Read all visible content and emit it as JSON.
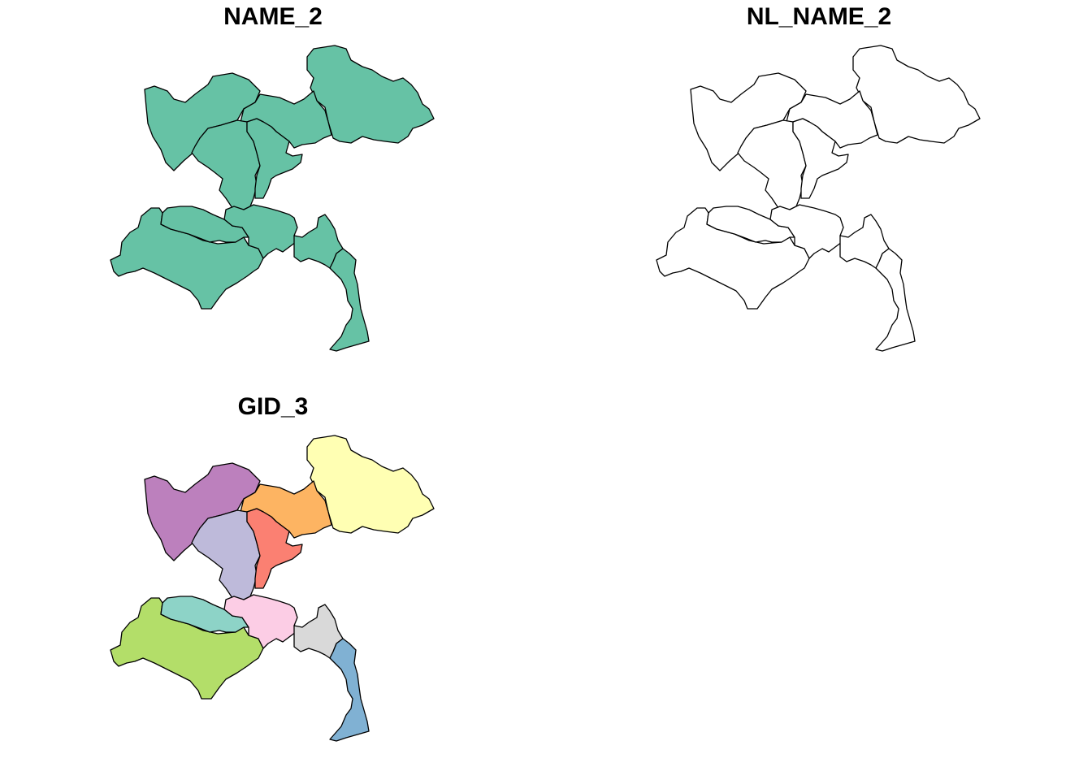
{
  "panels": [
    {
      "title": "NAME_2",
      "fill_mode": "single",
      "fill_color": "#66C2A5"
    },
    {
      "title": "NL_NAME_2",
      "fill_mode": "none",
      "fill_color": "#ffffff"
    },
    {
      "title": "GID_3",
      "fill_mode": "per-region"
    }
  ],
  "regions": [
    {
      "id": "north-east",
      "gid3_color": "#FFFFB3"
    },
    {
      "id": "north-west",
      "gid3_color": "#BC80BD"
    },
    {
      "id": "north-center",
      "gid3_color": "#FDB462"
    },
    {
      "id": "center-west",
      "gid3_color": "#BEBADA"
    },
    {
      "id": "center-east",
      "gid3_color": "#FB8072"
    },
    {
      "id": "south-west-large",
      "gid3_color": "#B3DE69"
    },
    {
      "id": "south-west-strip",
      "gid3_color": "#8DD3C7"
    },
    {
      "id": "south-center",
      "gid3_color": "#FCCDE5"
    },
    {
      "id": "south-east",
      "gid3_color": "#D9D9D9"
    },
    {
      "id": "south-tail",
      "gid3_color": "#80B1D3"
    }
  ]
}
